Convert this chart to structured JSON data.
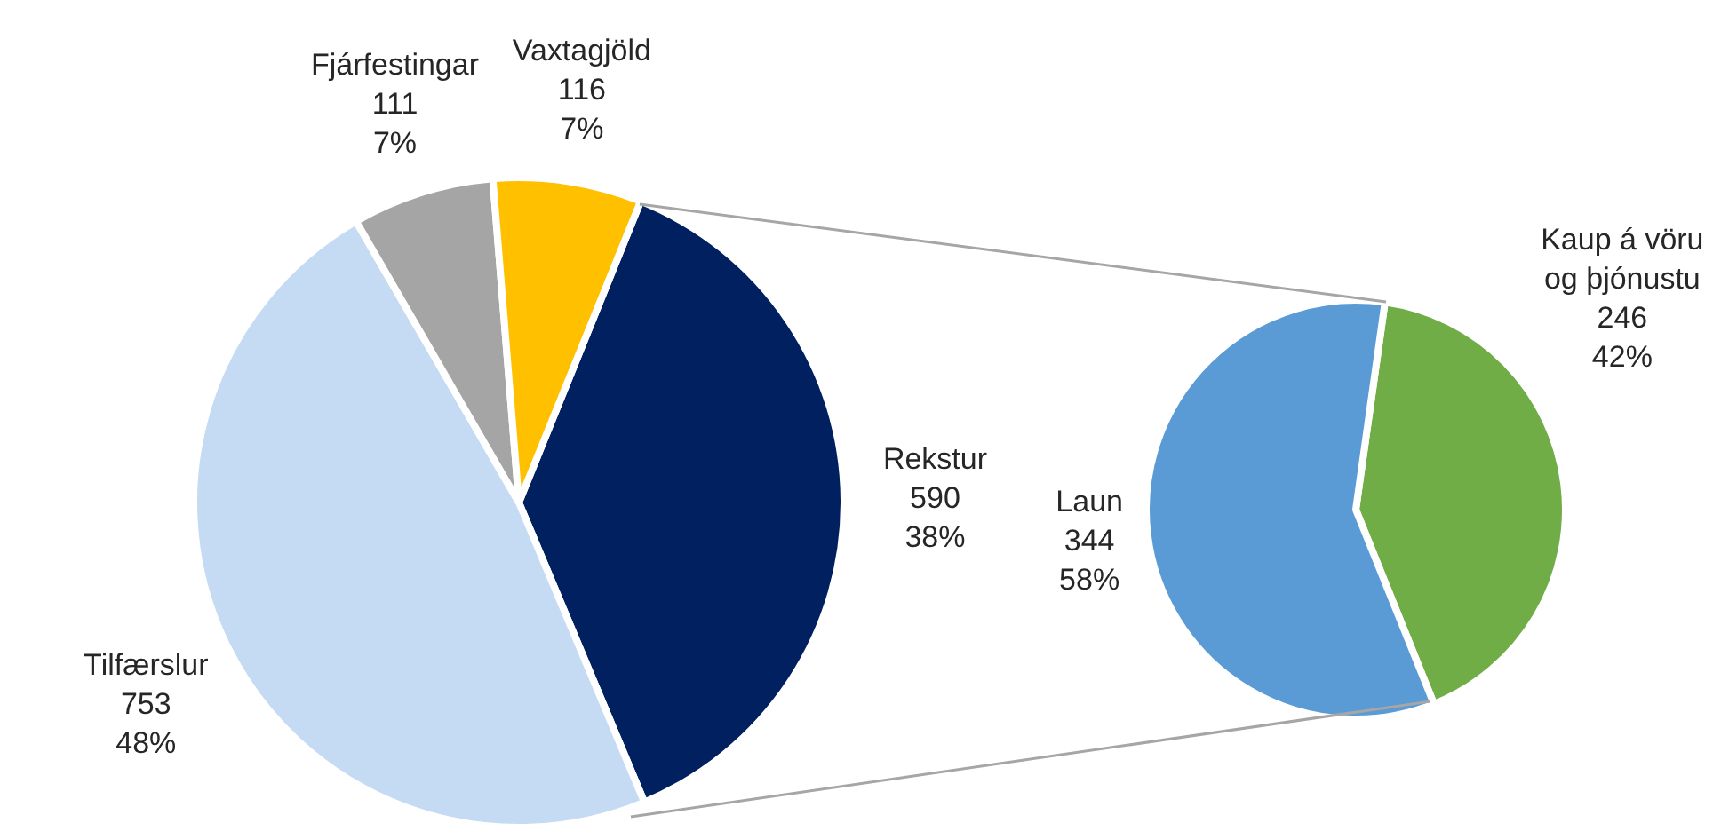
{
  "chart_data": [
    {
      "type": "pie",
      "categories": [
        "Rekstur",
        "Tilfærslur",
        "Fjárfestingar",
        "Vaxtagjöld"
      ],
      "values": [
        590,
        753,
        111,
        116
      ],
      "colors": [
        "#002060",
        "#c5daf3",
        "#a5a5a5",
        "#ffc000"
      ],
      "value_labels": [
        "590\n38%",
        "753\n48%",
        "111\n7%",
        "116\n7%"
      ]
    },
    {
      "type": "pie",
      "categories": [
        "Kaup á vöru og þjónustu",
        "Laun"
      ],
      "values": [
        246,
        344
      ],
      "colors": [
        "#70ad47",
        "#5b9bd5"
      ],
      "value_labels": [
        "246\n42%",
        "344\n58%"
      ]
    }
  ]
}
